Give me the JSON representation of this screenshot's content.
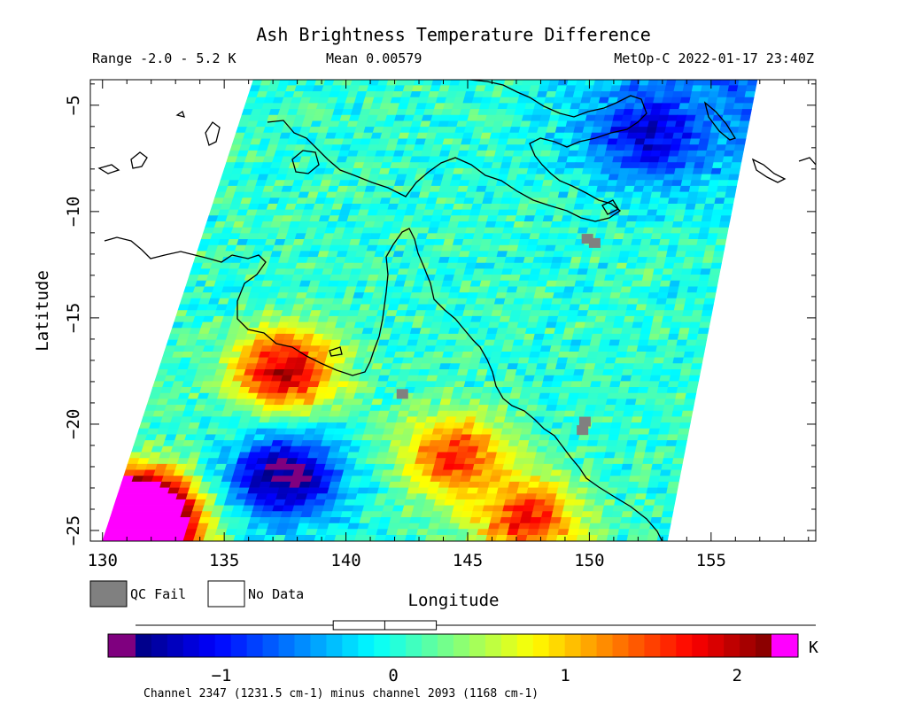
{
  "chart_data": {
    "type": "heatmap",
    "title": "Ash Brightness Temperature Difference",
    "range_label": "Range -2.0 - 5.2 K",
    "mean_label": "Mean 0.00579",
    "source_label": "MetOp-C 2022-01-17 23:40Z",
    "xlabel": "Longitude",
    "ylabel": "Latitude",
    "xlim": [
      129.5,
      159.3
    ],
    "ylim": [
      -25.5,
      -3.8
    ],
    "x_ticks": [
      130,
      135,
      140,
      145,
      150,
      155
    ],
    "y_ticks": [
      -5,
      -10,
      -15,
      -20,
      -25
    ],
    "swath_corners": {
      "top_left": [
        136.2,
        -3.8
      ],
      "top_right": [
        156.9,
        -3.8
      ],
      "bottom_left": [
        130.0,
        -25.5
      ],
      "bottom_right": [
        153.2,
        -25.5
      ]
    },
    "background_range_K": [
      -0.5,
      0.6
    ],
    "features": [
      {
        "name": "ash-plume-gulf-of-carpentaria",
        "lon": 137.5,
        "lat": -17.5,
        "value_K": 2.0
      },
      {
        "name": "warm-patch-inland-queensland",
        "lon": 144.5,
        "lat": -21.5,
        "value_K": 1.6
      },
      {
        "name": "warm-patch-south",
        "lon": 147.5,
        "lat": -24.5,
        "value_K": 1.7
      },
      {
        "name": "saturated-corner-sw",
        "lon": 131.5,
        "lat": -24.5,
        "value_K": 5.2
      },
      {
        "name": "cool-patch-west",
        "lon": 137.5,
        "lat": -22.5,
        "value_K": -1.6
      },
      {
        "name": "cool-area-northeast",
        "lon": 152.5,
        "lat": -6.5,
        "value_K": -1.2
      }
    ],
    "legend": {
      "qc_fail": "QC Fail",
      "no_data": "No Data"
    },
    "colorbar": {
      "min": -1.5,
      "max": 2.2,
      "ticks": [
        -1,
        0,
        1,
        2
      ],
      "unit": "K",
      "slider_range": [
        -0.35,
        0.25
      ]
    },
    "footnote": "Channel 2347 (1231.5 cm-1) minus channel 2093 (1168 cm-1)"
  },
  "colors": {
    "qc_fail": "#808080",
    "under": "#7f007f",
    "over": "#ff00ff",
    "coast": "#000000"
  }
}
